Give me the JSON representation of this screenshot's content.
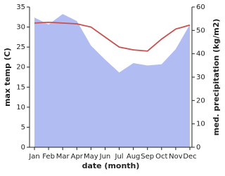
{
  "chart_data": {
    "type": "line-area",
    "categories": [
      "Jan",
      "Feb",
      "Mar",
      "Apr",
      "May",
      "Jun",
      "Jul",
      "Aug",
      "Sep",
      "Oct",
      "Nov",
      "Dec"
    ],
    "x_label": "date (month)",
    "y_label": "max temp (C)",
    "y2_label": "med. precipitation (kg/m2)",
    "ylim": [
      0,
      35
    ],
    "yticks": [
      0,
      5,
      10,
      15,
      20,
      25,
      30,
      35
    ],
    "y2lim": [
      0,
      60
    ],
    "y2ticks": [
      0,
      10,
      20,
      30,
      40,
      50,
      60
    ],
    "series": [
      {
        "name": "med. precipitation",
        "type": "area",
        "axis": "y2",
        "color": "#b0bcf2",
        "values": [
          55.5,
          52.5,
          57,
          54,
          43.5,
          37.5,
          32,
          36,
          35,
          35.5,
          42,
          52.5
        ]
      },
      {
        "name": "max temp",
        "type": "line",
        "color": "#c8504e",
        "values": [
          31,
          31.2,
          31,
          30.8,
          30,
          27.5,
          25,
          24.3,
          24,
          27,
          29.5,
          30.5
        ]
      }
    ]
  }
}
